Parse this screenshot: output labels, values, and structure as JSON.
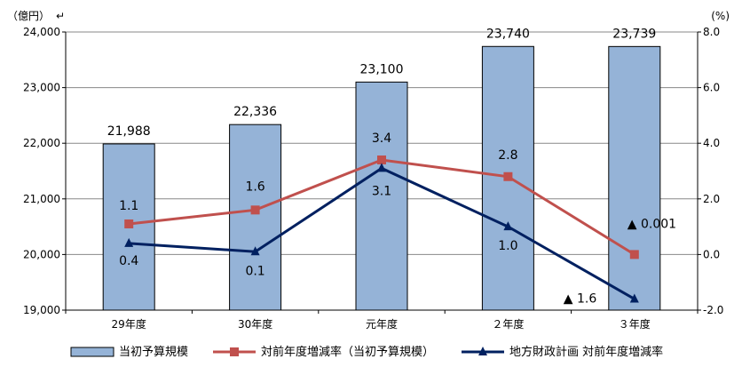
{
  "chart_data": {
    "type": "bar",
    "categories": [
      "29年度",
      "30年度",
      "元年度",
      "２年度",
      "３年度"
    ],
    "y_left_unit": "（億円）",
    "y_right_unit": "(%)",
    "y_left_ticks": [
      "19,000",
      "20,000",
      "21,000",
      "22,000",
      "23,000",
      "24,000"
    ],
    "y_right_ticks": [
      "-2.0",
      "0.0",
      "2.0",
      "4.0",
      "6.0",
      "8.0"
    ],
    "ylim_left": [
      19000,
      24000
    ],
    "ylim_right": [
      -2,
      8
    ],
    "colors": {
      "bar": "#95b3d7",
      "bar_edge": "#000000",
      "red": "#c0504d",
      "navy": "#002060",
      "grid": "#888888"
    },
    "series": [
      {
        "name": "当初予算規模",
        "kind": "bar",
        "axis": "left",
        "values": [
          21988,
          22336,
          23100,
          23740,
          23739
        ],
        "labels": [
          "21,988",
          "22,336",
          "23,100",
          "23,740",
          "23,739"
        ]
      },
      {
        "name": "対前年度増減率（当初予算規模）",
        "kind": "line",
        "axis": "right",
        "marker": "square",
        "values": [
          1.1,
          1.6,
          3.4,
          2.8,
          0.0
        ],
        "labels": [
          "1.1",
          "1.6",
          "3.4",
          "2.8",
          "▲ 0.001"
        ]
      },
      {
        "name": "地方財政計画 対前年度増減率",
        "kind": "line",
        "axis": "right",
        "marker": "triangle",
        "values": [
          0.4,
          0.1,
          3.1,
          1.0,
          -1.6
        ],
        "labels": [
          "0.4",
          "0.1",
          "3.1",
          "1.0",
          "▲ 1.6"
        ]
      }
    ]
  }
}
